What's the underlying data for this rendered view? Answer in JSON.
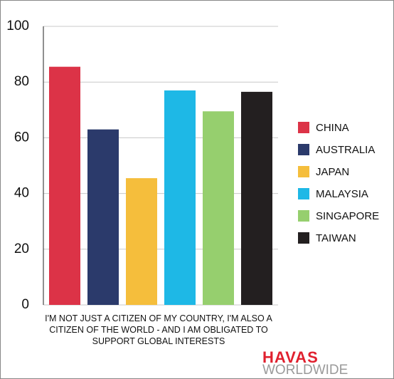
{
  "chart_data": {
    "type": "bar",
    "categories": [
      "I'M NOT JUST A CITIZEN OF MY COUNTRY, I'M ALSO A CITIZEN OF THE WORLD - AND I AM OBLIGATED TO SUPPORT GLOBAL INTERESTS"
    ],
    "series": [
      {
        "name": "CHINA",
        "color": "#dc3347",
        "values": [
          85.5
        ]
      },
      {
        "name": "AUSTRALIA",
        "color": "#2b3a6b",
        "values": [
          63
        ]
      },
      {
        "name": "JAPAN",
        "color": "#f5be3c",
        "values": [
          45.5
        ]
      },
      {
        "name": "MALAYSIA",
        "color": "#1eb8e6",
        "values": [
          77
        ]
      },
      {
        "name": "SINGAPORE",
        "color": "#96cf6e",
        "values": [
          69.5
        ]
      },
      {
        "name": "TAIWAN",
        "color": "#231f20",
        "values": [
          76.5
        ]
      }
    ],
    "ylim": [
      0,
      100
    ],
    "yticks": [
      0,
      20,
      40,
      60,
      80,
      100
    ],
    "grid": true,
    "legend": "right"
  },
  "logo": {
    "line1": "HAVAS",
    "line2": "WORLDWIDE"
  }
}
